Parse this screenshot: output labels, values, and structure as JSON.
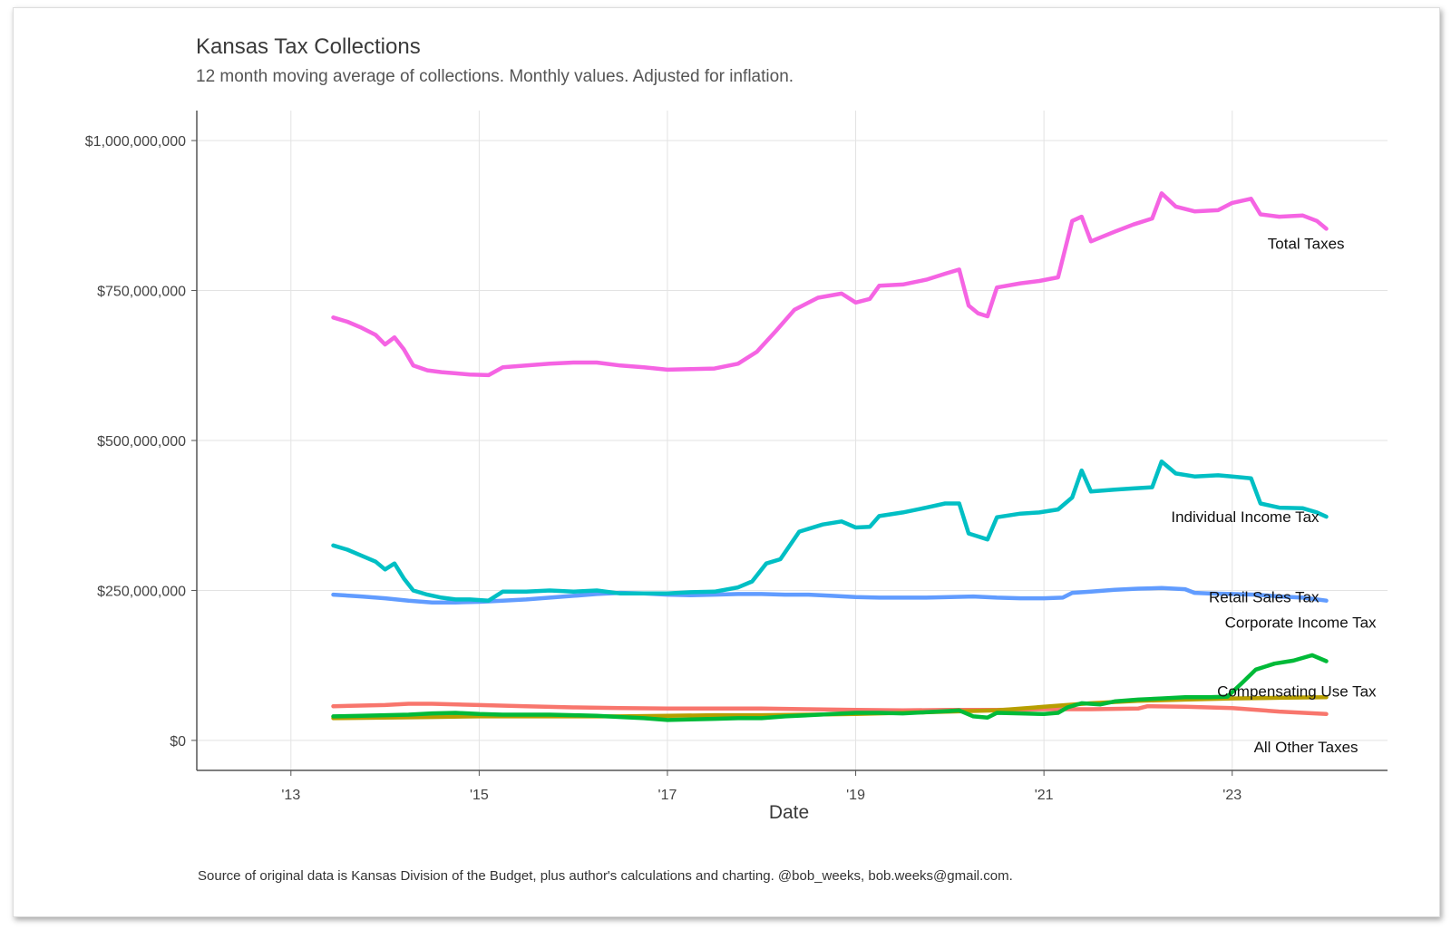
{
  "chart_data": {
    "type": "line",
    "title": "Kansas Tax Collections",
    "subtitle": "12 month moving average of collections. Monthly values. Adjusted for inflation.",
    "xlabel": "Date",
    "ylabel": "",
    "caption": "Source of original data is Kansas Division of the Budget, plus author's calculations and charting. @bob_weeks, bob.weeks@gmail.com.",
    "xlim": [
      2012.0,
      2024.65
    ],
    "ylim": [
      -50000000,
      1050000000
    ],
    "x_ticks": [
      {
        "value": 2013,
        "label": "'13"
      },
      {
        "value": 2015,
        "label": "'15"
      },
      {
        "value": 2017,
        "label": "'17"
      },
      {
        "value": 2019,
        "label": "'19"
      },
      {
        "value": 2021,
        "label": "'21"
      },
      {
        "value": 2023,
        "label": "'23"
      }
    ],
    "y_ticks": [
      {
        "value": 0,
        "label": "$0"
      },
      {
        "value": 250000000,
        "label": "$250,000,000"
      },
      {
        "value": 500000000,
        "label": "$500,000,000"
      },
      {
        "value": 750000000,
        "label": "$750,000,000"
      },
      {
        "value": 1000000000,
        "label": "$1,000,000,000"
      }
    ],
    "grid": true,
    "legend": "direct labels at line ends",
    "series": [
      {
        "name": "Total Taxes",
        "color": "#F564E3",
        "x": [
          2013.45,
          2013.6,
          2013.75,
          2013.9,
          2014.0,
          2014.1,
          2014.2,
          2014.3,
          2014.45,
          2014.6,
          2014.75,
          2014.9,
          2015.1,
          2015.25,
          2015.5,
          2015.75,
          2016.0,
          2016.25,
          2016.5,
          2016.75,
          2017.0,
          2017.25,
          2017.5,
          2017.75,
          2017.95,
          2018.15,
          2018.35,
          2018.6,
          2018.85,
          2019.0,
          2019.15,
          2019.25,
          2019.5,
          2019.75,
          2019.95,
          2020.1,
          2020.2,
          2020.3,
          2020.4,
          2020.5,
          2020.75,
          2020.95,
          2021.15,
          2021.3,
          2021.4,
          2021.5,
          2021.75,
          2021.95,
          2022.15,
          2022.25,
          2022.4,
          2022.6,
          2022.85,
          2023.0,
          2023.2,
          2023.3,
          2023.5,
          2023.75,
          2023.9,
          2024.0
        ],
        "values": [
          705000000,
          698000000,
          688000000,
          676000000,
          660000000,
          672000000,
          652000000,
          625000000,
          617000000,
          614000000,
          612000000,
          610000000,
          609000000,
          622000000,
          625000000,
          628000000,
          630000000,
          630000000,
          625000000,
          622000000,
          618000000,
          619000000,
          620000000,
          628000000,
          648000000,
          682000000,
          718000000,
          738000000,
          745000000,
          730000000,
          736000000,
          758000000,
          760000000,
          768000000,
          778000000,
          785000000,
          725000000,
          712000000,
          707000000,
          755000000,
          762000000,
          766000000,
          772000000,
          866000000,
          873000000,
          832000000,
          848000000,
          860000000,
          870000000,
          912000000,
          890000000,
          882000000,
          884000000,
          896000000,
          903000000,
          877000000,
          873000000,
          875000000,
          866000000,
          853000000
        ]
      },
      {
        "name": "Individual Income Tax",
        "color": "#00BFC4",
        "x": [
          2013.45,
          2013.6,
          2013.75,
          2013.9,
          2014.0,
          2014.1,
          2014.2,
          2014.3,
          2014.45,
          2014.6,
          2014.75,
          2014.9,
          2015.1,
          2015.25,
          2015.5,
          2015.75,
          2016.0,
          2016.25,
          2016.5,
          2016.75,
          2017.0,
          2017.25,
          2017.5,
          2017.75,
          2017.9,
          2018.05,
          2018.2,
          2018.4,
          2018.65,
          2018.85,
          2019.0,
          2019.15,
          2019.25,
          2019.5,
          2019.75,
          2019.95,
          2020.1,
          2020.2,
          2020.3,
          2020.4,
          2020.5,
          2020.75,
          2020.95,
          2021.15,
          2021.3,
          2021.4,
          2021.5,
          2021.75,
          2021.95,
          2022.15,
          2022.25,
          2022.4,
          2022.6,
          2022.85,
          2023.0,
          2023.2,
          2023.3,
          2023.5,
          2023.75,
          2023.9,
          2024.0
        ],
        "values": [
          325000000,
          318000000,
          308000000,
          298000000,
          285000000,
          295000000,
          270000000,
          250000000,
          243000000,
          238000000,
          235000000,
          235000000,
          233000000,
          248000000,
          248000000,
          250000000,
          248000000,
          250000000,
          245000000,
          245000000,
          245000000,
          247000000,
          248000000,
          255000000,
          265000000,
          295000000,
          302000000,
          348000000,
          360000000,
          365000000,
          355000000,
          356000000,
          374000000,
          380000000,
          388000000,
          395000000,
          395000000,
          345000000,
          340000000,
          335000000,
          372000000,
          378000000,
          380000000,
          385000000,
          405000000,
          450000000,
          415000000,
          418000000,
          420000000,
          422000000,
          465000000,
          445000000,
          440000000,
          442000000,
          440000000,
          437000000,
          395000000,
          388000000,
          387000000,
          380000000,
          373000000
        ]
      },
      {
        "name": "Retail Sales Tax",
        "color": "#619CFF",
        "x": [
          2013.45,
          2013.75,
          2014.0,
          2014.25,
          2014.5,
          2014.75,
          2015.0,
          2015.25,
          2015.5,
          2015.75,
          2016.0,
          2016.25,
          2016.5,
          2016.75,
          2017.0,
          2017.25,
          2017.5,
          2017.75,
          2018.0,
          2018.25,
          2018.5,
          2018.75,
          2019.0,
          2019.25,
          2019.5,
          2019.75,
          2020.0,
          2020.25,
          2020.5,
          2020.75,
          2021.0,
          2021.2,
          2021.3,
          2021.5,
          2021.75,
          2022.0,
          2022.25,
          2022.5,
          2022.6,
          2022.75,
          2023.0,
          2023.25,
          2023.5,
          2023.75,
          2024.0
        ],
        "values": [
          243000000,
          240000000,
          237000000,
          233000000,
          230000000,
          230000000,
          231000000,
          233000000,
          235000000,
          238000000,
          241000000,
          244000000,
          246000000,
          245000000,
          243000000,
          242000000,
          243000000,
          244000000,
          244000000,
          243000000,
          243000000,
          241000000,
          239000000,
          238000000,
          238000000,
          238000000,
          239000000,
          240000000,
          238000000,
          237000000,
          237000000,
          238000000,
          246000000,
          248000000,
          251000000,
          253000000,
          254000000,
          252000000,
          246000000,
          245000000,
          244000000,
          243000000,
          240000000,
          238000000,
          233000000
        ]
      },
      {
        "name": "Corporate Income Tax",
        "color": "#00BA38",
        "x": [
          2013.45,
          2013.75,
          2014.0,
          2014.25,
          2014.5,
          2014.75,
          2015.0,
          2015.25,
          2015.5,
          2015.75,
          2016.0,
          2016.25,
          2016.5,
          2016.75,
          2017.0,
          2017.25,
          2017.5,
          2017.75,
          2018.0,
          2018.25,
          2018.5,
          2018.75,
          2019.0,
          2019.25,
          2019.5,
          2019.75,
          2020.0,
          2020.1,
          2020.25,
          2020.4,
          2020.5,
          2020.75,
          2021.0,
          2021.15,
          2021.25,
          2021.4,
          2021.6,
          2021.75,
          2022.0,
          2022.25,
          2022.5,
          2022.75,
          2022.95,
          2023.1,
          2023.25,
          2023.45,
          2023.65,
          2023.85,
          2024.0
        ],
        "values": [
          40000000,
          41000000,
          42000000,
          43000000,
          45000000,
          46000000,
          44000000,
          43000000,
          43000000,
          43000000,
          42000000,
          41000000,
          39000000,
          37000000,
          34000000,
          35000000,
          36000000,
          37000000,
          37000000,
          40000000,
          42000000,
          44000000,
          46000000,
          46000000,
          45000000,
          47000000,
          49000000,
          50000000,
          40000000,
          38000000,
          46000000,
          45000000,
          44000000,
          46000000,
          55000000,
          62000000,
          60000000,
          65000000,
          68000000,
          70000000,
          72000000,
          72000000,
          73000000,
          95000000,
          118000000,
          128000000,
          133000000,
          142000000,
          132000000
        ]
      },
      {
        "name": "Compensating Use Tax",
        "color": "#B79F00",
        "x": [
          2013.45,
          2014.0,
          2014.5,
          2015.0,
          2015.5,
          2016.0,
          2016.5,
          2017.0,
          2017.5,
          2018.0,
          2018.5,
          2019.0,
          2019.5,
          2020.0,
          2020.5,
          2021.0,
          2021.5,
          2022.0,
          2022.5,
          2023.0,
          2023.5,
          2024.0
        ],
        "values": [
          37000000,
          38000000,
          39000000,
          40000000,
          40000000,
          40000000,
          40000000,
          41000000,
          42000000,
          42000000,
          43000000,
          44000000,
          46000000,
          48000000,
          50000000,
          56000000,
          62000000,
          66000000,
          68000000,
          70000000,
          71000000,
          72000000
        ]
      },
      {
        "name": "All Other Taxes",
        "color": "#F8766D",
        "x": [
          2013.45,
          2014.0,
          2014.25,
          2014.5,
          2015.0,
          2015.5,
          2016.0,
          2016.5,
          2017.0,
          2017.5,
          2018.0,
          2018.5,
          2019.0,
          2019.5,
          2020.0,
          2020.5,
          2021.0,
          2021.5,
          2022.0,
          2022.1,
          2022.5,
          2023.0,
          2023.5,
          2024.0
        ],
        "values": [
          57000000,
          59000000,
          61000000,
          61000000,
          59000000,
          57000000,
          55000000,
          54000000,
          53000000,
          53000000,
          53000000,
          52000000,
          51000000,
          50000000,
          51000000,
          51000000,
          52000000,
          52000000,
          53000000,
          57000000,
          56000000,
          54000000,
          48000000,
          44000000
        ]
      }
    ]
  }
}
